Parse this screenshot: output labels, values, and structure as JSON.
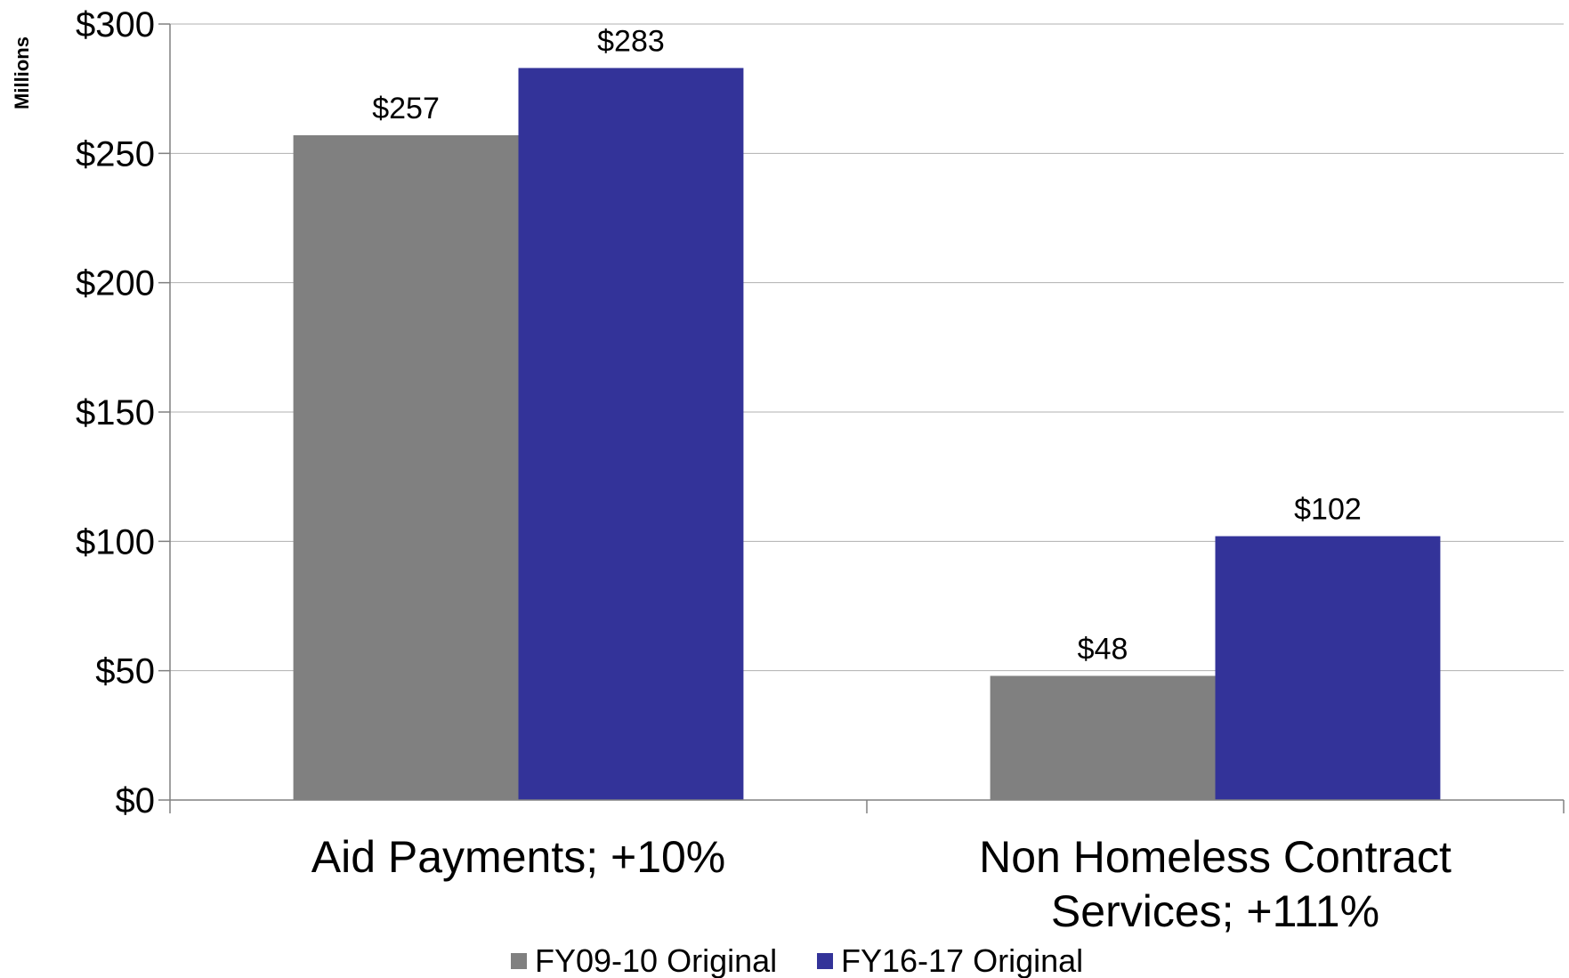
{
  "chart_data": {
    "type": "bar",
    "categories": [
      "Aid Payments; +10%",
      "Non Homeless Contract Services; +111%"
    ],
    "category_lines": [
      [
        "Aid Payments; +10%"
      ],
      [
        "Non Homeless Contract",
        "Services; +111%"
      ]
    ],
    "series": [
      {
        "name": "FY09-10 Original",
        "values": [
          257,
          48
        ],
        "labels": [
          "$257",
          "$48"
        ],
        "color": "#808080"
      },
      {
        "name": "FY16-17 Original",
        "values": [
          283,
          102
        ],
        "labels": [
          "$283",
          "$102"
        ],
        "color": "#333399"
      }
    ],
    "ylim": [
      0,
      300
    ],
    "yticks": [
      0,
      50,
      100,
      150,
      200,
      250,
      300
    ],
    "ytick_labels": [
      "$0",
      "$50",
      "$100",
      "$150",
      "$200",
      "$250",
      "$300"
    ],
    "unit_label": "Millions",
    "grid": true,
    "legend": "bottom"
  }
}
